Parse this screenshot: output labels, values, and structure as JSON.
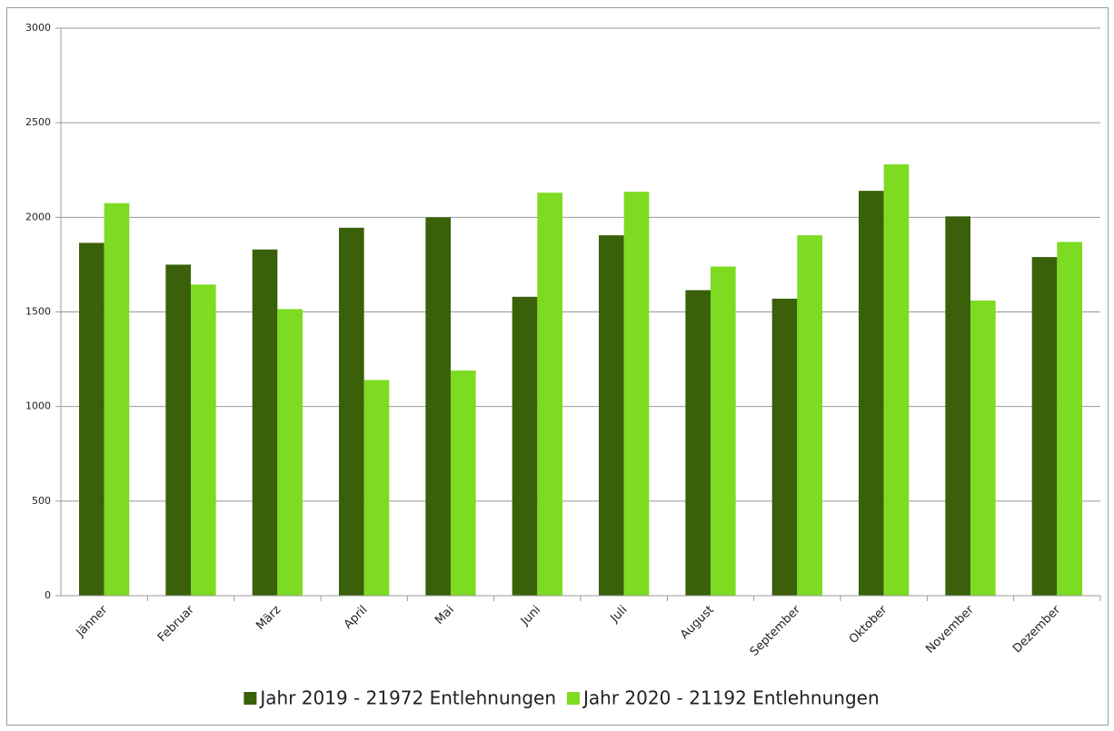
{
  "chart_data": {
    "type": "bar",
    "categories": [
      "Jänner",
      "Februar",
      "März",
      "April",
      "Mai",
      "Juni",
      "Juli",
      "August",
      "September",
      "Oktober",
      "November",
      "Dezember"
    ],
    "series": [
      {
        "name": "Jahr 2019 - 21972 Entlehnungen",
        "color": "#3a600a",
        "values": [
          1865,
          1750,
          1830,
          1945,
          2000,
          1580,
          1905,
          1615,
          1570,
          2140,
          2005,
          1790
        ]
      },
      {
        "name": "Jahr 2020 - 21192 Entlehnungen",
        "color": "#7ddb22",
        "values": [
          2075,
          1645,
          1515,
          1140,
          1190,
          2130,
          2135,
          1740,
          1905,
          2280,
          1560,
          1870
        ]
      }
    ],
    "ylim": [
      0,
      3000
    ],
    "yticks": [
      0,
      500,
      1000,
      1500,
      2000,
      2500,
      3000
    ],
    "grid": true,
    "legend": "bottom"
  }
}
